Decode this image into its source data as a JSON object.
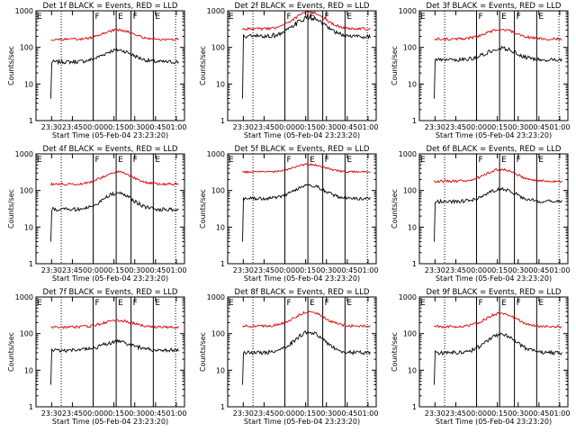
{
  "chart_data": [
    {
      "type": "line",
      "title": "Det 1f BLACK = Events, RED = LLD",
      "xlabel": "Start Time (05-Feb-04 23:23:20)",
      "ylabel": "Counts/sec",
      "yscale": "log",
      "ylim": [
        1,
        1000
      ],
      "x_ticks": [
        "23:30",
        "23:45",
        "00:00",
        "00:15",
        "00:30",
        "00:45",
        "01:00"
      ],
      "y_ticks": [
        "1",
        "10",
        "100",
        "1000"
      ],
      "markers": [
        "F",
        "E",
        "F",
        "E"
      ],
      "series": [
        {
          "name": "Events",
          "color": "#000000",
          "start": 4,
          "base": 40,
          "peak": 85,
          "noise": 0.12
        },
        {
          "name": "LLD",
          "color": "#dd0000",
          "start": 0,
          "base": 165,
          "peak": 300,
          "noise": 0.08
        }
      ]
    },
    {
      "type": "line",
      "title": "Det 2f BLACK = Events, RED = LLD",
      "xlabel": "Start Time (05-Feb-04 23:23:20)",
      "ylabel": "Counts/sec",
      "yscale": "log",
      "ylim": [
        1,
        1000
      ],
      "x_ticks": [
        "23:30",
        "23:45",
        "00:00",
        "00:15",
        "00:30",
        "00:45",
        "01:00"
      ],
      "y_ticks": [
        "1",
        "10",
        "100",
        "1000"
      ],
      "markers": [
        "F",
        "E",
        "F",
        "E"
      ],
      "series": [
        {
          "name": "Events",
          "color": "#000000",
          "start": 4,
          "base": 200,
          "peak": 650,
          "noise": 0.15
        },
        {
          "name": "LLD",
          "color": "#dd0000",
          "start": 0,
          "base": 320,
          "peak": 950,
          "noise": 0.08
        }
      ]
    },
    {
      "type": "line",
      "title": "Det 3f BLACK = Events, RED = LLD",
      "xlabel": "Start Time (05-Feb-04 23:23:20)",
      "ylabel": "Counts/sec",
      "yscale": "log",
      "ylim": [
        1,
        1000
      ],
      "x_ticks": [
        "23:30",
        "23:45",
        "00:00",
        "00:15",
        "00:30",
        "00:45",
        "01:00"
      ],
      "y_ticks": [
        "1",
        "10",
        "100",
        "1000"
      ],
      "markers": [
        "F",
        "E",
        "F",
        "E"
      ],
      "series": [
        {
          "name": "Events",
          "color": "#000000",
          "start": 4,
          "base": 45,
          "peak": 95,
          "noise": 0.12
        },
        {
          "name": "LLD",
          "color": "#dd0000",
          "start": 0,
          "base": 170,
          "peak": 310,
          "noise": 0.08
        }
      ]
    },
    {
      "type": "line",
      "title": "Det 4f BLACK = Events, RED = LLD",
      "xlabel": "Start Time (05-Feb-04 23:23:20)",
      "ylabel": "Counts/sec",
      "yscale": "log",
      "ylim": [
        1,
        1000
      ],
      "x_ticks": [
        "23:30",
        "23:45",
        "00:00",
        "00:15",
        "00:30",
        "00:45",
        "01:00"
      ],
      "y_ticks": [
        "1",
        "10",
        "100",
        "1000"
      ],
      "markers": [
        "F",
        "E",
        "F",
        "E"
      ],
      "series": [
        {
          "name": "Events",
          "color": "#000000",
          "start": 4,
          "base": 30,
          "peak": 85,
          "noise": 0.12
        },
        {
          "name": "LLD",
          "color": "#dd0000",
          "start": 0,
          "base": 150,
          "peak": 320,
          "noise": 0.08
        }
      ]
    },
    {
      "type": "line",
      "title": "Det 5f BLACK = Events, RED = LLD",
      "xlabel": "Start Time (05-Feb-04 23:23:20)",
      "ylabel": "Counts/sec",
      "yscale": "log",
      "ylim": [
        1,
        1000
      ],
      "x_ticks": [
        "23:30",
        "23:45",
        "00:00",
        "00:15",
        "00:30",
        "00:45",
        "01:00"
      ],
      "y_ticks": [
        "1",
        "10",
        "100",
        "1000"
      ],
      "markers": [
        "F",
        "E",
        "F",
        "E"
      ],
      "series": [
        {
          "name": "Events",
          "color": "#000000",
          "start": 4,
          "base": 60,
          "peak": 140,
          "noise": 0.1
        },
        {
          "name": "LLD",
          "color": "#dd0000",
          "start": 0,
          "base": 320,
          "peak": 520,
          "noise": 0.06
        }
      ]
    },
    {
      "type": "line",
      "title": "Det 6f BLACK = Events, RED = LLD",
      "xlabel": "Start Time (05-Feb-04 23:23:20)",
      "ylabel": "Counts/sec",
      "yscale": "log",
      "ylim": [
        1,
        1000
      ],
      "x_ticks": [
        "23:30",
        "23:45",
        "00:00",
        "00:15",
        "00:30",
        "00:45",
        "01:00"
      ],
      "y_ticks": [
        "1",
        "10",
        "100",
        "1000"
      ],
      "markers": [
        "F",
        "E",
        "F",
        "E"
      ],
      "series": [
        {
          "name": "Events",
          "color": "#000000",
          "start": 4,
          "base": 50,
          "peak": 110,
          "noise": 0.11
        },
        {
          "name": "LLD",
          "color": "#dd0000",
          "start": 0,
          "base": 180,
          "peak": 380,
          "noise": 0.08
        }
      ]
    },
    {
      "type": "line",
      "title": "Det 7f BLACK = Events, RED = LLD",
      "xlabel": "Start Time (05-Feb-04 23:23:20)",
      "ylabel": "Counts/sec",
      "yscale": "log",
      "ylim": [
        1,
        1000
      ],
      "x_ticks": [
        "23:30",
        "23:45",
        "00:00",
        "00:15",
        "00:30",
        "00:45",
        "01:00"
      ],
      "y_ticks": [
        "1",
        "10",
        "100",
        "1000"
      ],
      "markers": [
        "F",
        "E",
        "F",
        "E"
      ],
      "series": [
        {
          "name": "Events",
          "color": "#000000",
          "start": 4,
          "base": 35,
          "peak": 60,
          "noise": 0.12
        },
        {
          "name": "LLD",
          "color": "#dd0000",
          "start": 0,
          "base": 150,
          "peak": 230,
          "noise": 0.08
        }
      ]
    },
    {
      "type": "line",
      "title": "Det 8f BLACK = Events, RED = LLD",
      "xlabel": "Start Time (05-Feb-04 23:23:20)",
      "ylabel": "Counts/sec",
      "yscale": "log",
      "ylim": [
        1,
        1000
      ],
      "x_ticks": [
        "23:30",
        "23:45",
        "00:00",
        "00:15",
        "00:30",
        "00:45",
        "01:00"
      ],
      "y_ticks": [
        "1",
        "10",
        "100",
        "1000"
      ],
      "markers": [
        "F",
        "E",
        "F",
        "E"
      ],
      "series": [
        {
          "name": "Events",
          "color": "#000000",
          "start": 4,
          "base": 30,
          "peak": 110,
          "noise": 0.12
        },
        {
          "name": "LLD",
          "color": "#dd0000",
          "start": 0,
          "base": 160,
          "peak": 390,
          "noise": 0.08
        }
      ]
    },
    {
      "type": "line",
      "title": "Det 9f BLACK = Events, RED = LLD",
      "xlabel": "Start Time (05-Feb-04 23:23:20)",
      "ylabel": "Counts/sec",
      "yscale": "log",
      "ylim": [
        1,
        1000
      ],
      "x_ticks": [
        "23:30",
        "23:45",
        "00:00",
        "00:15",
        "00:30",
        "00:45",
        "01:00"
      ],
      "y_ticks": [
        "1",
        "10",
        "100",
        "1000"
      ],
      "markers": [
        "F",
        "E",
        "F",
        "E"
      ],
      "series": [
        {
          "name": "Events",
          "color": "#000000",
          "start": 4,
          "base": 30,
          "peak": 95,
          "noise": 0.12
        },
        {
          "name": "LLD",
          "color": "#dd0000",
          "start": 0,
          "base": 155,
          "peak": 360,
          "noise": 0.08
        }
      ]
    }
  ]
}
